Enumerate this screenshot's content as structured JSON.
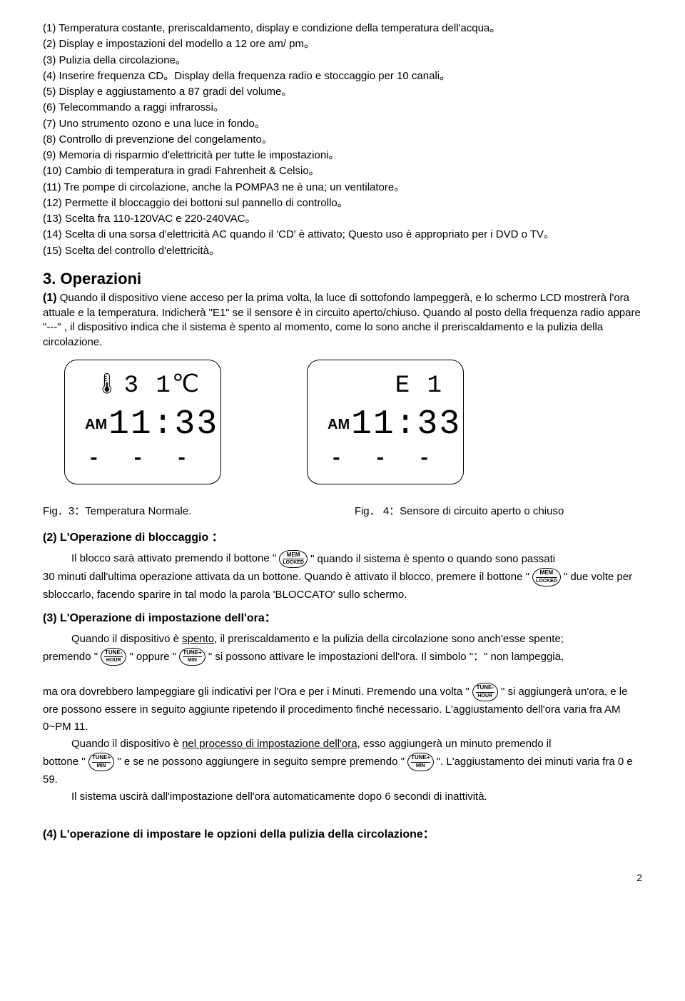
{
  "list": {
    "i1": "(1) Temperatura costante, preriscaldamento, display e condizione della temperatura dell'acqua。",
    "i2": "(2) Display e impostazioni del modello a 12 ore am/ pm。",
    "i3": "(3) Pulizia della circolazione。",
    "i4": "(4) Inserire frequenza CD。Display della frequenza radio e stoccaggio per 10 canali。",
    "i5": "(5) Display e aggiustamento a 87 gradi del volume。",
    "i6": "(6) Telecommando a raggi infrarossi。",
    "i7": "(7) Uno strumento ozono e una luce in fondo。",
    "i8": "(8) Controllo di prevenzione del congelamento。",
    "i9": "(9) Memoria di risparmio d'elettricità per tutte le impostazioni。",
    "i10": "(10) Cambio di temperatura in gradi Fahrenheit & Celsio。",
    "i11": "(11) Tre pompe di circolazione, anche la POMPA3 ne è una; un ventilatore。",
    "i12": "(12) Permette il bloccaggio dei bottoni sul pannello di controllo。",
    "i13": "(13) Scelta fra 110-120VAC e 220-240VAC。",
    "i14": "(14) Scelta di una sorsa d'elettricità AC quando il 'CD' è attivato; Questo uso è appropriato per i DVD o TV。",
    "i15": "(15) Scelta del controllo d'elettricità。"
  },
  "section3": {
    "title": "3. Operazioni",
    "p1_lead": "(1)",
    "p1_text": " Quando il dispositivo viene acceso per la prima volta, la luce di sottofondo lampeggerà, e lo schermo LCD mostrerà l'ora attuale e la temperatura. Indicherà \"E1\" se il sensore è in circuito aperto/chiuso. Quando al posto della frequenza radio appare \"---\" , il dispositivo indica che il sistema è spento al momento, come lo sono anche il preriscaldamento e la pulizia della circolazione."
  },
  "lcd1": {
    "temp": "3 1",
    "unit": "℃",
    "ampm": "AM",
    "time": "11:33",
    "dashes": "- - -"
  },
  "lcd2": {
    "err": "E 1",
    "ampm": "AM",
    "time": "11:33",
    "dashes": "- - -"
  },
  "fig3": "Fig．3：Temperatura Normale.",
  "fig4": "Fig． 4：Sensore di circuito aperto o chiuso",
  "op2": {
    "head": "(2) L'Operazione di bloccaggio ：",
    "t1": "Il blocco sarà attivato premendo il bottone \" ",
    "t2": " \" quando il sistema è spento o quando sono passati",
    "t3": "30 minuti dall'ultima operazione attivata da un bottone. Quando è attivato il blocco, premere il bottone \" ",
    "t4": " \" due volte per sbloccarlo, facendo sparire in tal modo la parola 'BLOCCATO' sullo schermo."
  },
  "op3": {
    "head": "(3) L'Operazione di impostazione dell'ora：",
    "l1a": "Quando il dispositivo è ",
    "l1u": "spento",
    "l1b": ", il preriscaldamento e la pulizia della circolazione sono anch'esse spente;",
    "l2a": "premendo \" ",
    "l2b": " \" oppure \" ",
    "l2c": " \" si possono attivare le impostazioni dell'ora. Il simbolo \"：\" non lampeggia,",
    "l3a": "ma ora dovrebbero lampeggiare gli indicativi per l'Ora e per i Minuti. Premendo una volta \" ",
    "l3b": " \" si aggiungerà un'ora, e le ore possono essere in seguito aggiunte ripetendo il procedimento finché necessario. L'aggiustamento dell'ora varia fra AM 0~PM 11.",
    "l4a": "Quando il dispositivo è ",
    "l4u": "nel processo di impostazione dell'ora",
    "l4b": ", esso aggiungerà un minuto premendo il",
    "l5a": "bottone \" ",
    "l5b": " \" e se ne possono aggiungere in seguito sempre premendo \" ",
    "l5c": " \". L'aggiustamento dei minuti varia fra 0 e 59.",
    "l6": "Il sistema uscirà dall'impostazione dell'ora automaticamente dopo 6 secondi di inattività."
  },
  "op4": {
    "head": "(4) L'operazione di impostare le opzioni della pulizia della circolazione："
  },
  "btn": {
    "mem1": "MEM",
    "mem2": "LOCKED",
    "tminus1": "TUNE-",
    "tminus2": "HOUR",
    "tplus1": "TUNE+",
    "tplus2": "MIN"
  },
  "page": "2"
}
